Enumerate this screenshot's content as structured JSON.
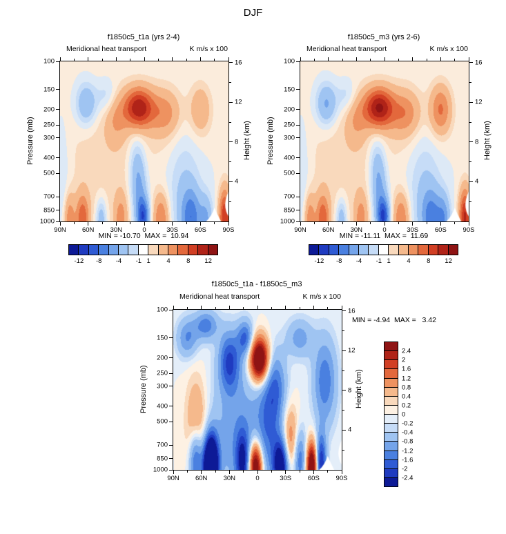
{
  "page_title": "DJF",
  "axes": {
    "pressure_label": "Pressure (mb)",
    "height_label": "Height (km)",
    "pressure_ticks": [
      100,
      150,
      200,
      250,
      300,
      400,
      500,
      700,
      850,
      1000
    ],
    "height_ticks": [
      16,
      12,
      8,
      4
    ],
    "height_minor_ticks": [
      14,
      10,
      6,
      2
    ],
    "lat_ticks": [
      "90N",
      "60N",
      "30N",
      "0",
      "30S",
      "60S",
      "90S"
    ]
  },
  "colors": {
    "band_colors": [
      "#0d1a96",
      "#1f3bc0",
      "#2f5bd4",
      "#4a80e0",
      "#74a4ea",
      "#9fc4f2",
      "#c6dcf7",
      "#dde9f6",
      "#fbecdc",
      "#f9d9bc",
      "#f5b98c",
      "#ee9260",
      "#e3683c",
      "#d13f24",
      "#b02318",
      "#8f1414"
    ],
    "colorbar_colors": [
      "#0d1a96",
      "#1f3bc0",
      "#2f5bd4",
      "#4a80e0",
      "#74a4ea",
      "#9fc4f2",
      "#c6dcf7",
      "#ffffff",
      "#f9d9bc",
      "#f5b98c",
      "#ee9260",
      "#e3683c",
      "#d13f24",
      "#b02318",
      "#8f1414"
    ],
    "diff_band_colors": [
      "#0d1a96",
      "#1f3bc0",
      "#2f5bd4",
      "#4a80e0",
      "#74a4ea",
      "#9fc4f2",
      "#c6dcf7",
      "#e4eef9",
      "#fdf1e3",
      "#f9d9bc",
      "#f5b98c",
      "#ee9260",
      "#e3683c",
      "#d13f24",
      "#b02318",
      "#8f1414"
    ]
  },
  "panels": [
    {
      "title": "f1850c5_t1a (yrs 2-4)",
      "subtitle": "Meridional heat transport",
      "units": "K m/s x 100",
      "minmax": "MIN = -10.70  MAX =  10.94"
    },
    {
      "title": "f1850c5_m3 (yrs 2-6)",
      "subtitle": "Meridional heat transport",
      "units": "K m/s x 100",
      "minmax": "MIN = -11.11  MAX =  11.69"
    },
    {
      "title": "f1850c5_t1a - f1850c5_m3",
      "subtitle": "Meridional heat transport",
      "units": "K m/s x 100",
      "minmax": "MIN = -4.94  MAX =   3.42"
    }
  ],
  "chart_data": [
    {
      "type": "heatmap",
      "title": "f1850c5_t1a (yrs 2-4)",
      "subtitle": "Meridional heat transport",
      "units": "K m/s x 100",
      "min": -10.7,
      "max": 10.94,
      "x_axis": {
        "ticks": [
          "90N",
          "60N",
          "30N",
          "0",
          "30S",
          "60S",
          "90S"
        ],
        "range_deg": [
          90,
          -90
        ]
      },
      "y_axis_left": {
        "label": "Pressure (mb)",
        "scale": "log",
        "ticks": [
          100,
          150,
          200,
          250,
          300,
          400,
          500,
          700,
          850,
          1000
        ]
      },
      "y_axis_right": {
        "label": "Height (km)",
        "ticks": [
          16,
          12,
          8,
          4
        ]
      },
      "levels": [
        -12,
        -10,
        -8,
        -6,
        -4,
        -2,
        -1,
        1,
        2,
        4,
        6,
        8,
        10,
        12
      ],
      "colorbar_labels": [
        -12,
        -8,
        -4,
        -1,
        1,
        4,
        8,
        12
      ],
      "band_levels": [
        -12,
        -10,
        -8,
        -6,
        -4,
        -2,
        -1,
        0,
        1,
        2,
        4,
        6,
        8,
        10,
        12
      ],
      "band_palette": "band_colors",
      "features": [
        {
          "lat": 88,
          "p": 550,
          "amp": -1.5,
          "slat": 6,
          "sp": 0.6
        },
        {
          "lat": 62,
          "p": 185,
          "amp": -4.5,
          "slat": 8,
          "sp": 0.22
        },
        {
          "lat": 40,
          "p": 165,
          "amp": -2.2,
          "slat": 8,
          "sp": 0.18
        },
        {
          "lat": 45,
          "p": 420,
          "amp": 1.6,
          "slat": 32,
          "sp": 0.85
        },
        {
          "lat": -30,
          "p": 250,
          "amp": 1.4,
          "slat": 24,
          "sp": 0.5
        },
        {
          "lat": 6,
          "p": 195,
          "amp": 11,
          "slat": 11,
          "sp": 0.2
        },
        {
          "lat": 30,
          "p": 230,
          "amp": 3,
          "slat": 8,
          "sp": 0.25
        },
        {
          "lat": -22,
          "p": 210,
          "amp": 4,
          "slat": 11,
          "sp": 0.22
        },
        {
          "lat": -60,
          "p": 200,
          "amp": 3.5,
          "slat": 8,
          "sp": 0.25
        },
        {
          "lat": -42,
          "p": 560,
          "amp": -2.4,
          "slat": 13,
          "sp": 0.7
        },
        {
          "lat": 8,
          "p": 480,
          "amp": -3.5,
          "slat": 6,
          "sp": 0.35
        },
        {
          "lat": 4,
          "p": 750,
          "amp": -3.5,
          "slat": 5.5,
          "sp": 0.35
        },
        {
          "lat": 1,
          "p": 940,
          "amp": -8,
          "slat": 4.5,
          "sp": 0.18
        },
        {
          "lat": 66,
          "p": 960,
          "amp": 7,
          "slat": 5,
          "sp": 0.25
        },
        {
          "lat": 80,
          "p": 965,
          "amp": 5,
          "slat": 4,
          "sp": 0.25
        },
        {
          "lat": 46,
          "p": 975,
          "amp": -4,
          "slat": 4,
          "sp": 0.22
        },
        {
          "lat": 25,
          "p": 965,
          "amp": 4.5,
          "slat": 5,
          "sp": 0.25
        },
        {
          "lat": -18,
          "p": 955,
          "amp": 6,
          "slat": 6,
          "sp": 0.25
        },
        {
          "lat": -50,
          "p": 945,
          "amp": -6.5,
          "slat": 7,
          "sp": 0.28
        },
        {
          "lat": -66,
          "p": 975,
          "amp": -4,
          "slat": 5,
          "sp": 0.25
        },
        {
          "lat": -86,
          "p": 950,
          "amp": 10,
          "slat": 4.5,
          "sp": 0.3
        }
      ]
    },
    {
      "type": "heatmap",
      "title": "f1850c5_m3 (yrs 2-6)",
      "subtitle": "Meridional heat transport",
      "units": "K m/s x 100",
      "min": -11.11,
      "max": 11.69,
      "x_axis": {
        "ticks": [
          "90N",
          "60N",
          "30N",
          "0",
          "30S",
          "60S",
          "90S"
        ],
        "range_deg": [
          90,
          -90
        ]
      },
      "y_axis_left": {
        "label": "Pressure (mb)",
        "scale": "log",
        "ticks": [
          100,
          150,
          200,
          250,
          300,
          400,
          500,
          700,
          850,
          1000
        ]
      },
      "y_axis_right": {
        "label": "Height (km)",
        "ticks": [
          16,
          12,
          8,
          4
        ]
      },
      "levels": [
        -12,
        -10,
        -8,
        -6,
        -4,
        -2,
        -1,
        1,
        2,
        4,
        6,
        8,
        10,
        12
      ],
      "colorbar_labels": [
        -12,
        -8,
        -4,
        -1,
        1,
        4,
        8,
        12
      ],
      "band_levels": [
        -12,
        -10,
        -8,
        -6,
        -4,
        -2,
        -1,
        0,
        1,
        2,
        4,
        6,
        8,
        10,
        12
      ],
      "band_palette": "band_colors",
      "features": [
        {
          "lat": 88,
          "p": 550,
          "amp": -1.5,
          "slat": 6,
          "sp": 0.6
        },
        {
          "lat": 62,
          "p": 185,
          "amp": -5,
          "slat": 8,
          "sp": 0.22
        },
        {
          "lat": 40,
          "p": 165,
          "amp": -2.2,
          "slat": 8,
          "sp": 0.18
        },
        {
          "lat": 45,
          "p": 420,
          "amp": 1.6,
          "slat": 32,
          "sp": 0.85
        },
        {
          "lat": -30,
          "p": 250,
          "amp": 1.4,
          "slat": 24,
          "sp": 0.5
        },
        {
          "lat": 6,
          "p": 195,
          "amp": 11.6,
          "slat": 11,
          "sp": 0.2
        },
        {
          "lat": 30,
          "p": 230,
          "amp": 3,
          "slat": 8,
          "sp": 0.25
        },
        {
          "lat": -22,
          "p": 210,
          "amp": 4.5,
          "slat": 11,
          "sp": 0.22
        },
        {
          "lat": -60,
          "p": 200,
          "amp": 6,
          "slat": 8,
          "sp": 0.25
        },
        {
          "lat": -42,
          "p": 560,
          "amp": -2.4,
          "slat": 13,
          "sp": 0.7
        },
        {
          "lat": 8,
          "p": 480,
          "amp": -3.5,
          "slat": 6,
          "sp": 0.35
        },
        {
          "lat": 4,
          "p": 750,
          "amp": -3.5,
          "slat": 5.5,
          "sp": 0.35
        },
        {
          "lat": 1,
          "p": 940,
          "amp": -8.5,
          "slat": 4.5,
          "sp": 0.18
        },
        {
          "lat": 66,
          "p": 960,
          "amp": 7,
          "slat": 5,
          "sp": 0.25
        },
        {
          "lat": 80,
          "p": 965,
          "amp": 5,
          "slat": 4,
          "sp": 0.25
        },
        {
          "lat": 46,
          "p": 975,
          "amp": -4,
          "slat": 4,
          "sp": 0.22
        },
        {
          "lat": 25,
          "p": 965,
          "amp": 4.5,
          "slat": 5,
          "sp": 0.25
        },
        {
          "lat": -18,
          "p": 955,
          "amp": 6,
          "slat": 6,
          "sp": 0.25
        },
        {
          "lat": -50,
          "p": 945,
          "amp": -6,
          "slat": 7,
          "sp": 0.28
        },
        {
          "lat": -63,
          "p": 970,
          "amp": -5,
          "slat": 5,
          "sp": 0.25
        },
        {
          "lat": -86,
          "p": 950,
          "amp": 10.5,
          "slat": 4.5,
          "sp": 0.3
        }
      ]
    },
    {
      "type": "heatmap",
      "title": "f1850c5_t1a - f1850c5_m3",
      "subtitle": "Meridional heat transport",
      "units": "K m/s x 100",
      "min": -4.94,
      "max": 3.42,
      "x_axis": {
        "ticks": [
          "90N",
          "60N",
          "30N",
          "0",
          "30S",
          "60S",
          "90S"
        ],
        "range_deg": [
          90,
          -90
        ]
      },
      "y_axis_left": {
        "label": "Pressure (mb)",
        "scale": "log",
        "ticks": [
          100,
          150,
          200,
          250,
          300,
          400,
          500,
          700,
          850,
          1000
        ]
      },
      "y_axis_right": {
        "label": "Height (km)",
        "ticks": [
          16,
          12,
          8,
          4
        ]
      },
      "levels": [
        -2.4,
        -2,
        -1.6,
        -1.2,
        -0.8,
        -0.4,
        -0.2,
        0,
        0.2,
        0.4,
        0.8,
        1.2,
        1.6,
        2,
        2.4
      ],
      "band_levels": [
        -2.4,
        -2,
        -1.6,
        -1.2,
        -0.8,
        -0.4,
        -0.2,
        0,
        0.2,
        0.4,
        0.8,
        1.2,
        1.6,
        2,
        2.4
      ],
      "band_palette": "diff_band_colors",
      "colorbar_vertical": true,
      "features": [
        {
          "lat": 55,
          "p": 125,
          "amp": -1.4,
          "slat": 9,
          "sp": 0.15
        },
        {
          "lat": 75,
          "p": 150,
          "amp": -1.2,
          "slat": 8,
          "sp": 0.2
        },
        {
          "lat": 30,
          "p": 210,
          "amp": -1.9,
          "slat": 8,
          "sp": 0.3
        },
        {
          "lat": 13,
          "p": 150,
          "amp": -1.6,
          "slat": 6,
          "sp": 0.18
        },
        {
          "lat": -2,
          "p": 205,
          "amp": 4.0,
          "slat": 7,
          "sp": 0.22
        },
        {
          "lat": -20,
          "p": 300,
          "amp": -1.2,
          "slat": 8,
          "sp": 0.35
        },
        {
          "lat": -45,
          "p": 150,
          "amp": -1.0,
          "slat": 10,
          "sp": 0.2
        },
        {
          "lat": -72,
          "p": 280,
          "amp": -1.5,
          "slat": 9,
          "sp": 0.45
        },
        {
          "lat": 65,
          "p": 550,
          "amp": 1.1,
          "slat": 8,
          "sp": 0.5
        },
        {
          "lat": 20,
          "p": 600,
          "amp": -1.1,
          "slat": 22,
          "sp": 0.7
        },
        {
          "lat": -35,
          "p": 680,
          "amp": 1.4,
          "slat": 6,
          "sp": 0.35
        },
        {
          "lat": -12,
          "p": 500,
          "amp": -1.2,
          "slat": 9,
          "sp": 0.5
        },
        {
          "lat": 50,
          "p": 940,
          "amp": -5.2,
          "slat": 5.5,
          "sp": 0.3
        },
        {
          "lat": 66,
          "p": 860,
          "amp": -2.0,
          "slat": 5,
          "sp": 0.3
        },
        {
          "lat": 2,
          "p": 960,
          "amp": 3.8,
          "slat": 5,
          "sp": 0.25
        },
        {
          "lat": 16,
          "p": 890,
          "amp": -2.0,
          "slat": 5,
          "sp": 0.3
        },
        {
          "lat": -25,
          "p": 945,
          "amp": -3.2,
          "slat": 6,
          "sp": 0.28
        },
        {
          "lat": -58,
          "p": 965,
          "amp": 3.6,
          "slat": 4,
          "sp": 0.25
        },
        {
          "lat": -68,
          "p": 920,
          "amp": -2.4,
          "slat": 4,
          "sp": 0.3
        },
        {
          "lat": -45,
          "p": 860,
          "amp": -1.6,
          "slat": 5,
          "sp": 0.3
        }
      ]
    }
  ]
}
